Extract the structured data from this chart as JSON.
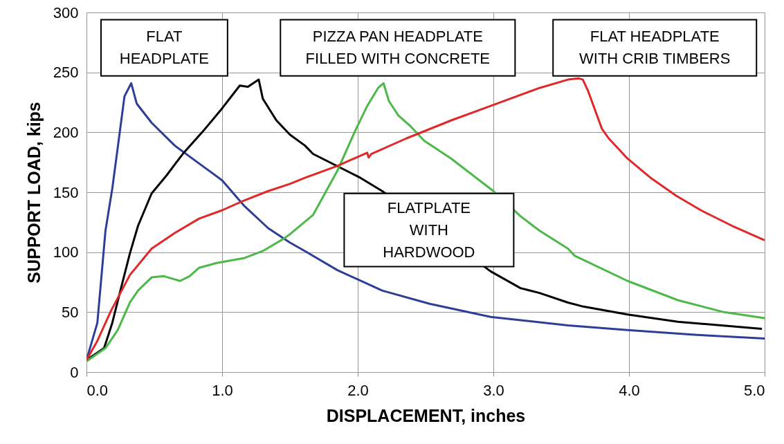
{
  "chart_data": {
    "type": "line",
    "xlabel": "DISPLACEMENT, inches",
    "ylabel": "SUPPORT LOAD, kips",
    "xlim": [
      0,
      5
    ],
    "ylim": [
      0,
      300
    ],
    "xticks": [
      {
        "value": 0,
        "label": "0.0"
      },
      {
        "value": 1,
        "label": "1.0"
      },
      {
        "value": 2,
        "label": "2.0"
      },
      {
        "value": 3,
        "label": "3.0"
      },
      {
        "value": 4,
        "label": "4.0"
      },
      {
        "value": 5,
        "label": "5.0"
      }
    ],
    "yticks": [
      0,
      50,
      100,
      150,
      200,
      250,
      300
    ],
    "grid": true,
    "series": [
      {
        "name": "FLAT\nHEADPLATE",
        "color": "#2e3d98",
        "x": [
          0,
          0.08,
          0.14,
          0.19,
          0.23,
          0.28,
          0.33,
          0.37,
          0.48,
          0.65,
          0.83,
          1.0,
          1.16,
          1.34,
          1.5,
          1.61,
          1.85,
          2.18,
          2.53,
          2.98,
          3.55,
          3.99,
          4.5,
          5.0
        ],
        "values": [
          10,
          41,
          118,
          153,
          187,
          230,
          241,
          224,
          208,
          189,
          174,
          160,
          139,
          120,
          108,
          101,
          85,
          68,
          57,
          46,
          39,
          35,
          31,
          28
        ]
      },
      {
        "name": "FLATPLATE\nWITH\nHARDWOOD",
        "color": "#000000",
        "x": [
          0,
          0.13,
          0.19,
          0.25,
          0.32,
          0.38,
          0.48,
          0.59,
          0.71,
          0.86,
          1.0,
          1.13,
          1.19,
          1.27,
          1.3,
          1.4,
          1.5,
          1.61,
          1.67,
          2.02,
          2.18,
          2.98,
          3.2,
          3.34,
          3.55,
          3.65,
          3.99,
          4.36,
          4.98
        ],
        "values": [
          10,
          20,
          41,
          68,
          99,
          122,
          149,
          164,
          182,
          201,
          220,
          239,
          238,
          244,
          228,
          210,
          198,
          189,
          182,
          162,
          151,
          84,
          70,
          66,
          58,
          55,
          48,
          42,
          36
        ]
      },
      {
        "name": "PIZZA PAN HEADPLATE\nFILLED WITH CONCRETE",
        "color": "#4cb848",
        "x": [
          0,
          0.14,
          0.23,
          0.32,
          0.38,
          0.48,
          0.57,
          0.69,
          0.76,
          0.83,
          0.96,
          1.16,
          1.3,
          1.45,
          1.5,
          1.67,
          1.85,
          1.98,
          2.07,
          2.15,
          2.19,
          2.23,
          2.3,
          2.39,
          2.49,
          2.69,
          3.0,
          3.2,
          3.34,
          3.55,
          3.6,
          3.99,
          4.36,
          4.7,
          5.0
        ],
        "values": [
          9,
          20,
          35,
          58,
          68,
          79,
          80,
          76,
          80,
          87,
          91,
          95,
          101,
          111,
          115,
          131,
          168,
          201,
          222,
          237,
          241,
          226,
          214,
          205,
          193,
          178,
          151,
          130,
          118,
          103,
          97,
          76,
          60,
          50,
          45
        ]
      },
      {
        "name": "FLAT HEADPLATE\nWITH CRIB TIMBERS",
        "color": "#e0282a",
        "x": [
          0,
          0.08,
          0.18,
          0.32,
          0.48,
          0.65,
          0.83,
          1.0,
          1.16,
          1.34,
          1.5,
          1.61,
          1.85,
          2.07,
          2.08,
          2.1,
          2.36,
          2.69,
          2.98,
          3.34,
          3.55,
          3.63,
          3.66,
          3.7,
          3.8,
          3.85,
          3.99,
          4.16,
          4.35,
          4.53,
          4.76,
          5.0
        ],
        "values": [
          10,
          26,
          51,
          81,
          103,
          116,
          128,
          135,
          143,
          151,
          157,
          162,
          172,
          183,
          179,
          182,
          195,
          210,
          222,
          237,
          244,
          245,
          244,
          234,
          203,
          195,
          178,
          162,
          147,
          135,
          122,
          110
        ]
      }
    ]
  }
}
